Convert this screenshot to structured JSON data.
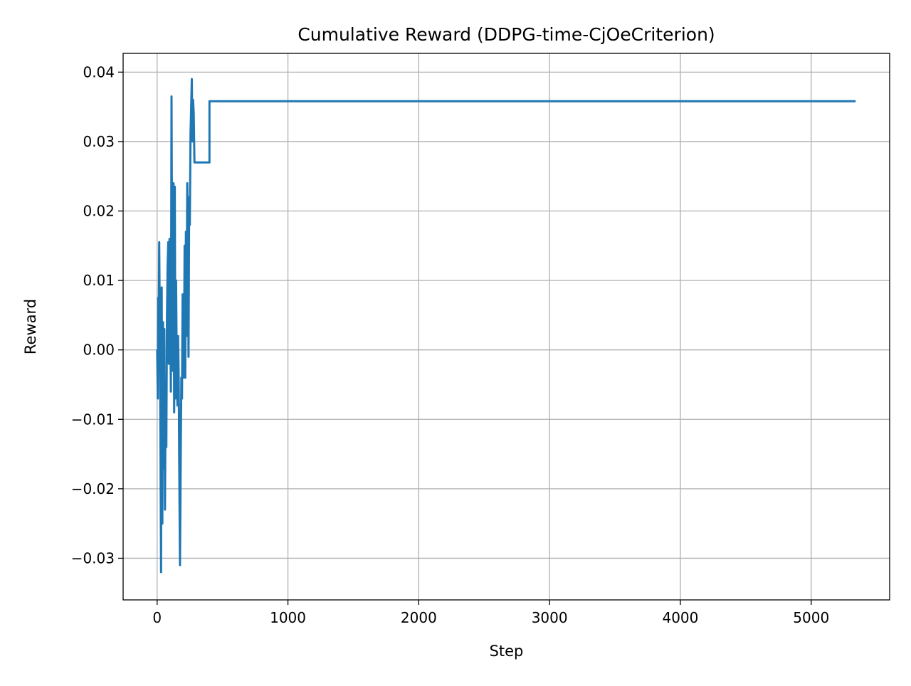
{
  "chart_data": {
    "type": "line",
    "title": "Cumulative Reward (DDPG-time-CjOeCriterion)",
    "xlabel": "Step",
    "ylabel": "Reward",
    "xlim": [
      -260,
      5600
    ],
    "ylim": [
      -0.036,
      0.0427
    ],
    "xticks": [
      0,
      1000,
      2000,
      3000,
      4000,
      5000
    ],
    "xtick_labels": [
      "0",
      "1000",
      "2000",
      "3000",
      "4000",
      "5000"
    ],
    "yticks": [
      -0.03,
      -0.02,
      -0.01,
      0.0,
      0.01,
      0.02,
      0.03,
      0.04
    ],
    "ytick_labels": [
      "−0.03",
      "−0.02",
      "−0.01",
      "0.00",
      "0.01",
      "0.02",
      "0.03",
      "0.04"
    ],
    "grid": true,
    "legend": "none",
    "series": [
      {
        "color": "#1f77b4",
        "x": [
          0,
          5,
          8,
          12,
          16,
          20,
          25,
          30,
          35,
          40,
          45,
          50,
          55,
          60,
          65,
          70,
          75,
          80,
          85,
          90,
          95,
          100,
          105,
          110,
          115,
          120,
          125,
          130,
          135,
          140,
          145,
          150,
          155,
          160,
          165,
          170,
          175,
          180,
          185,
          190,
          195,
          200,
          205,
          210,
          215,
          220,
          225,
          230,
          235,
          240,
          245,
          250,
          255,
          260,
          265,
          270,
          275,
          280,
          285,
          290,
          295,
          300,
          305,
          310,
          315,
          320,
          325,
          330,
          335,
          340,
          345,
          350,
          360,
          370,
          380,
          390,
          400,
          400,
          5340
        ],
        "y": [
          0.0,
          -0.007,
          0.0075,
          0.002,
          0.0155,
          0.004,
          -0.012,
          -0.032,
          0.009,
          -0.025,
          0.004,
          -0.017,
          0.003,
          -0.023,
          -0.005,
          -0.014,
          0.005,
          0.012,
          0.0155,
          -0.002,
          0.016,
          0.005,
          -0.006,
          0.0365,
          0.01,
          -0.003,
          0.024,
          -0.009,
          0.0235,
          -0.007,
          0.01,
          -0.003,
          -0.008,
          0.002,
          -0.004,
          -0.019,
          -0.031,
          -0.016,
          -0.004,
          -0.007,
          0.008,
          -0.004,
          -0.001,
          0.015,
          -0.004,
          0.017,
          0.002,
          0.024,
          0.014,
          -0.001,
          0.022,
          0.018,
          0.031,
          0.035,
          0.039,
          0.03,
          0.036,
          0.034,
          0.027,
          0.027,
          0.027,
          0.027,
          0.027,
          0.027,
          0.027,
          0.027,
          0.027,
          0.027,
          0.027,
          0.027,
          0.027,
          0.027,
          0.027,
          0.027,
          0.027,
          0.027,
          0.027,
          0.0358,
          0.0358
        ]
      }
    ]
  }
}
